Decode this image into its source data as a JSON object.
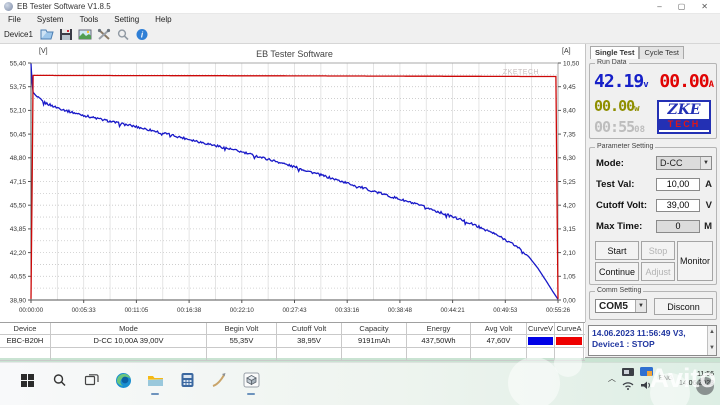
{
  "window": {
    "title": "EB Tester Software V1.8.5",
    "controls": {
      "minimize": "–",
      "maximize": "▢",
      "close": "✕"
    }
  },
  "menu": {
    "items": [
      "File",
      "System",
      "Tools",
      "Setting",
      "Help"
    ]
  },
  "toolbar": {
    "device_label": "Device1"
  },
  "chart_data": {
    "type": "line",
    "title": "EB Tester Software",
    "watermark": "ZKETECH",
    "y_left": {
      "label": "[V]",
      "min": 38.9,
      "max": 55.4,
      "ticks": [
        "55,40",
        "53,75",
        "52,10",
        "50,45",
        "48,80",
        "47,15",
        "45,50",
        "43,85",
        "42,20",
        "40,55",
        "38,90"
      ]
    },
    "y_right": {
      "label": "[A]",
      "min": 0.0,
      "max": 10.5,
      "ticks": [
        "10,50",
        "9,45",
        "8,40",
        "7,35",
        "6,30",
        "5,25",
        "4,20",
        "3,15",
        "2,10",
        "1,05",
        "0,00"
      ]
    },
    "x": {
      "ticks": [
        "00:00:00",
        "00:05:33",
        "00:11:05",
        "00:16:38",
        "00:22:10",
        "00:27:43",
        "00:33:16",
        "00:38:48",
        "00:44:21",
        "00:49:53",
        "00:55:26"
      ]
    },
    "series": [
      {
        "name": "CurveV",
        "axis": "left",
        "color": "#1818c8",
        "noise": 0.16,
        "points": [
          [
            0.0,
            55.35
          ],
          [
            0.003,
            53.4
          ],
          [
            0.01,
            53.1
          ],
          [
            0.025,
            52.65
          ],
          [
            0.045,
            52.35
          ],
          [
            0.07,
            52.05
          ],
          [
            0.1,
            51.75
          ],
          [
            0.13,
            51.5
          ],
          [
            0.16,
            51.25
          ],
          [
            0.195,
            51.0
          ],
          [
            0.23,
            50.7
          ],
          [
            0.27,
            50.35
          ],
          [
            0.31,
            50.0
          ],
          [
            0.35,
            49.65
          ],
          [
            0.39,
            49.3
          ],
          [
            0.43,
            48.9
          ],
          [
            0.47,
            48.5
          ],
          [
            0.51,
            48.05
          ],
          [
            0.55,
            47.6
          ],
          [
            0.59,
            47.15
          ],
          [
            0.63,
            46.7
          ],
          [
            0.67,
            46.25
          ],
          [
            0.71,
            45.8
          ],
          [
            0.745,
            45.4
          ],
          [
            0.78,
            44.95
          ],
          [
            0.815,
            44.5
          ],
          [
            0.85,
            44.0
          ],
          [
            0.88,
            43.5
          ],
          [
            0.905,
            43.0
          ],
          [
            0.925,
            42.55
          ],
          [
            0.945,
            41.9
          ],
          [
            0.962,
            41.1
          ],
          [
            0.978,
            40.2
          ],
          [
            0.99,
            39.5
          ],
          [
            1.0,
            38.95
          ]
        ]
      },
      {
        "name": "CurveA",
        "axis": "right",
        "color": "#cc0808",
        "noise": 0,
        "points": [
          [
            0.0,
            0.05
          ],
          [
            0.004,
            9.95
          ],
          [
            0.5,
            9.93
          ],
          [
            0.996,
            9.9
          ],
          [
            1.0,
            0.05
          ]
        ]
      }
    ]
  },
  "right_panel": {
    "tabs": [
      {
        "label": "Single Test"
      },
      {
        "label": "Cycle Test"
      }
    ],
    "run_data": {
      "group_label": "Run Data",
      "voltage": {
        "value": "42.19",
        "unit": "v"
      },
      "current": {
        "value": "00.00",
        "unit": "A"
      },
      "power": {
        "value": "00.00",
        "unit": "w"
      },
      "time": {
        "main": "00:55",
        "sub": "08"
      },
      "logo": {
        "line1": "ZKE",
        "line2": "TECH"
      }
    },
    "parameter_setting": {
      "group_label": "Parameter Setting",
      "mode": {
        "label": "Mode:",
        "value": "D-CC"
      },
      "test_val": {
        "label": "Test Val:",
        "value": "10,00",
        "unit": "A"
      },
      "cutoff_volt": {
        "label": "Cutoff Volt:",
        "value": "39,00",
        "unit": "V"
      },
      "max_time": {
        "label": "Max Time:",
        "value": "0",
        "unit": "M"
      },
      "buttons": {
        "start": "Start",
        "stop": "Stop",
        "continue": "Continue",
        "adjust": "Adjust",
        "monitor": "Monitor"
      }
    },
    "comm_setting": {
      "group_label": "Comm Setting",
      "port": "COM5",
      "disconnect": "Disconn"
    },
    "log": {
      "line1": "14.06.2023 11:56:49  V3,",
      "line2": "Device1 : STOP"
    }
  },
  "bottom_table": {
    "columns": [
      "Device",
      "Mode",
      "Begin Volt",
      "Cutoff Volt",
      "Capacity",
      "Energy",
      "Avg Volt",
      "CurveV",
      "CurveA"
    ],
    "rows": [
      {
        "device": "EBC-B20H",
        "mode": "D-CC 10,00A  39,00V",
        "begin_volt": "55,35V",
        "cutoff_volt": "38,95V",
        "capacity": "9191mAh",
        "energy": "437,50Wh",
        "avg_volt": "47,60V",
        "curve_v_color": "#0000e6",
        "curve_a_color": "#ee0000"
      }
    ]
  },
  "taskbar": {
    "tray": {
      "language": "ENG",
      "time": "11:56",
      "date": "14.06.2023"
    }
  },
  "watermark": {
    "text": "Avito"
  }
}
